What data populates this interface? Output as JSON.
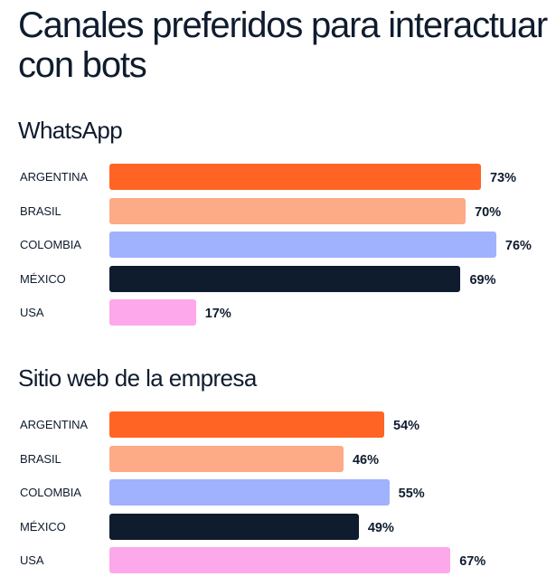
{
  "page": {
    "title": "Canales preferidos para interactuar con bots"
  },
  "colors": {
    "ARGENTINA": "#ff6424",
    "BRASIL": "#fdaa87",
    "COLOMBIA": "#a0b1fd",
    "MÉXICO": "#0f1c2e",
    "USA": "#fda8ea"
  },
  "chart_data": [
    {
      "type": "bar",
      "orientation": "horizontal",
      "title": "WhatsApp",
      "categories": [
        "ARGENTINA",
        "BRASIL",
        "COLOMBIA",
        "MÉXICO",
        "USA"
      ],
      "values": [
        73,
        70,
        76,
        69,
        17
      ],
      "value_labels": [
        "73%",
        "70%",
        "76%",
        "69%",
        "17%"
      ],
      "unit": "%",
      "xlim": [
        0,
        100
      ],
      "grid": false,
      "xlabel": "",
      "ylabel": ""
    },
    {
      "type": "bar",
      "orientation": "horizontal",
      "title": "Sitio web de la empresa",
      "categories": [
        "ARGENTINA",
        "BRASIL",
        "COLOMBIA",
        "MÉXICO",
        "USA"
      ],
      "values": [
        54,
        46,
        55,
        49,
        67
      ],
      "value_labels": [
        "54%",
        "46%",
        "55%",
        "49%",
        "67%"
      ],
      "unit": "%",
      "xlim": [
        0,
        100
      ],
      "grid": false,
      "xlabel": "",
      "ylabel": ""
    }
  ]
}
